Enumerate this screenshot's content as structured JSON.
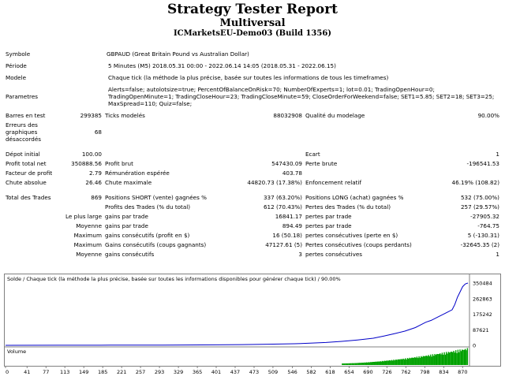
{
  "header": {
    "title": "Strategy Tester Report",
    "subtitle": "Multiversal",
    "server": "ICMarketsEU-Demo03 (Build 1356)"
  },
  "info": {
    "symbol_label": "Symbole",
    "symbol_value": "GBPAUD (Great Britain Pound vs Australian Dollar)",
    "period_label": "Période",
    "period_value": "5 Minutes (M5) 2018.05.31 00:00 - 2022.06.14 14:05 (2018.05.31 - 2022.06.15)",
    "model_label": "Modele",
    "model_value": "Chaque tick (la méthode la plus précise, basée sur toutes les informations de tous les timeframes)",
    "params_label": "Parametres",
    "params_lines": [
      "Alerts=false; autolotsize=true; PercentOfBalanceOnRisk=70; NumberOfExperts=1; lot=0.01; TradingOpenHour=0;",
      "TradingOpenMinute=1; TradingCloseHour=23; TradingCloseMinute=59; CloseOrderForWeekend=false; SET1=5.85; SET2=18; SET3=25;",
      "MaxSpread=110; Quiz=false;"
    ]
  },
  "stats": {
    "bars_label": "Barres en test",
    "bars_value": "299385",
    "ticks_label": "Ticks modelés",
    "ticks_value": "88032908",
    "quality_label": "Qualité du modelage",
    "quality_value": "90.00%",
    "errors_label_lines": [
      "Erreurs des",
      "graphiques",
      "désaccordés"
    ],
    "errors_value": "68",
    "deposit_label": "Dépot initial",
    "deposit_value": "100.00",
    "ecart_label": "Ecart",
    "ecart_value": "1",
    "net_label": "Profit total net",
    "net_value": "350888.56",
    "gross_profit_label": "Profit brut",
    "gross_profit_value": "547430.09",
    "gross_loss_label": "Perte brute",
    "gross_loss_value": "-196541.53",
    "pf_label": "Facteur de profit",
    "pf_value": "2.79",
    "expected_label": "Rémunération espérée",
    "expected_value": "403.78",
    "abs_dd_label": "Chute absolue",
    "abs_dd_value": "26.46",
    "max_dd_label": "Chute maximale",
    "max_dd_value": "44820.73 (17.38%)",
    "rel_dd_label": "Enfoncement relatif",
    "rel_dd_value": "46.19% (108.82)",
    "trades_label": "Total des Trades",
    "trades_value": "869",
    "short_label": "Positions SHORT (vente) gagnées %",
    "short_value": "337 (63.20%)",
    "long_label": "Positions LONG (achat) gagnées %",
    "long_value": "532 (75.00%)",
    "profit_trades_label": "Profits des Trades (% du total)",
    "profit_trades_value": "612 (70.43%)",
    "loss_trades_label": "Pertes des Trades (% du total)",
    "loss_trades_value": "257 (29.57%)",
    "largest_prefix": "Le plus large",
    "largest_gain_label": "gains par trade",
    "largest_gain_value": "16841.17",
    "largest_loss_label": "pertes par trade",
    "largest_loss_value": "-27905.32",
    "avg_prefix": "Moyenne",
    "avg_gain_label": "gains par trade",
    "avg_gain_value": "894.49",
    "avg_loss_label": "pertes par trade",
    "avg_loss_value": "-764.75",
    "max_prefix": "Maximum",
    "cons_win_label": "gains consécutifs (profit en $)",
    "cons_win_value": "16 (50.18)",
    "cons_loss_label": "pertes consécutives (perte en $)",
    "cons_loss_value": "5 (-130.31)",
    "max_prefix2": "Maximum",
    "cons_profit_label": "Gains consécutifs (coups gagnants)",
    "cons_profit_value": "47127.61 (5)",
    "cons_perte_label": "Pertes consécutives (coups perdants)",
    "cons_perte_value": "-32645.35 (2)",
    "avg_prefix2": "Moyenne",
    "avg_cons_win_label": "gains consécutifs",
    "avg_cons_win_value": "3",
    "avg_cons_loss_label": "pertes consécutives",
    "avg_cons_loss_value": "1"
  },
  "chart_data": {
    "type": "line",
    "title": "Solde / Chaque tick (la méthode la plus précise, basée sur toutes les informations disponibles pour générer chaque tick) / 90.00%",
    "volume_label": "Volume",
    "y_ticks": [
      "350484",
      "262863",
      "175242",
      "87621",
      "0"
    ],
    "x_ticks": [
      "0",
      "41",
      "77",
      "113",
      "149",
      "185",
      "221",
      "257",
      "293",
      "329",
      "365",
      "401",
      "437",
      "473",
      "509",
      "546",
      "582",
      "618",
      "654",
      "690",
      "726",
      "762",
      "798",
      "834",
      "870"
    ],
    "xlim": [
      0,
      880
    ],
    "ylim": [
      0,
      350484
    ],
    "x": [
      0,
      100,
      200,
      300,
      400,
      450,
      500,
      550,
      580,
      610,
      640,
      670,
      700,
      720,
      740,
      760,
      780,
      790,
      800,
      810,
      820,
      830,
      840,
      850,
      855,
      860,
      865,
      870,
      875,
      880
    ],
    "values": [
      100,
      300,
      800,
      1500,
      2500,
      4000,
      6000,
      9000,
      12000,
      16000,
      22000,
      30000,
      40000,
      52000,
      65000,
      80000,
      100000,
      115000,
      130000,
      140000,
      155000,
      170000,
      185000,
      200000,
      230000,
      270000,
      300000,
      330000,
      345000,
      350484
    ],
    "colors": {
      "line": "#0000c8",
      "axis_bg": "#ffffff",
      "volume": "#00a000",
      "tick_line": "#808080"
    }
  }
}
